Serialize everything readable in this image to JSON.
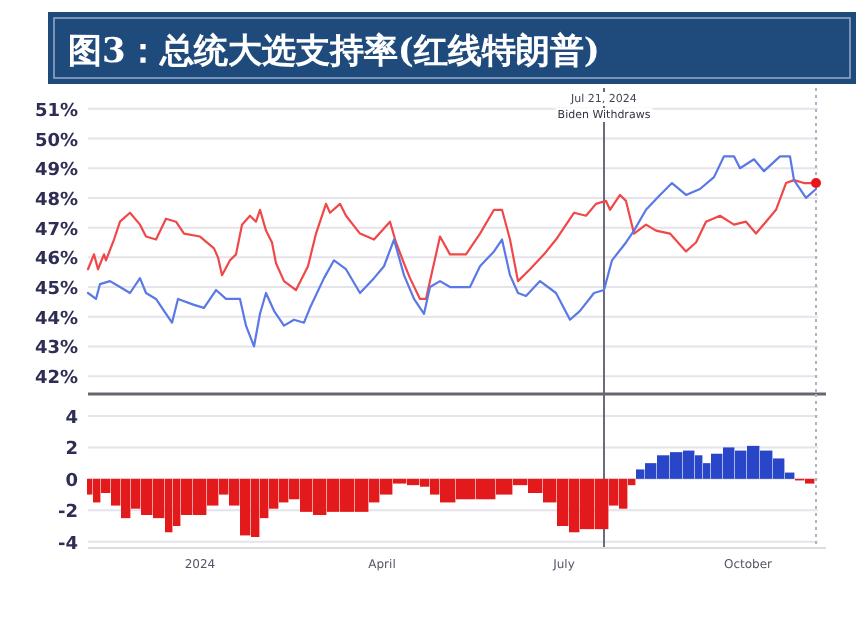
{
  "chart_data": [
    {
      "type": "line",
      "title": "图3：总统大选支持率(红线特朗普)",
      "xlim": [
        "2023-11-06",
        "2024-11-05"
      ],
      "ylim": [
        41.4,
        51.7
      ],
      "yticks": [
        {
          "value": 42,
          "label": "42%"
        },
        {
          "value": 43,
          "label": "43%"
        },
        {
          "value": 44,
          "label": "44%"
        },
        {
          "value": 45,
          "label": "45%"
        },
        {
          "value": 46,
          "label": "46%"
        },
        {
          "value": 47,
          "label": "47%"
        },
        {
          "value": 48,
          "label": "48%"
        },
        {
          "value": 49,
          "label": "49%"
        },
        {
          "value": 50,
          "label": "50%"
        },
        {
          "value": 51,
          "label": "51%"
        }
      ],
      "tick_labels": "y",
      "grid": "y",
      "line_style": "solid",
      "ref_lines": [
        {
          "axis": "x",
          "value": "2024-07-21",
          "label": "Jul 21, 2024",
          "color": "#6b6b80"
        },
        {
          "axis": "x",
          "value": "2024-11-04",
          "color": "#b0b0c8",
          "line_style": "dotted"
        }
      ],
      "annotations": [
        "Biden Withdraws"
      ],
      "series": [
        {
          "color": "#f04848",
          "x": [
            "2023-11-06",
            "2023-11-09",
            "2023-11-11",
            "2023-11-14",
            "2023-11-15",
            "2023-11-19",
            "2023-11-22",
            "2023-11-27",
            "2023-12-02",
            "2023-12-05",
            "2023-12-10",
            "2023-12-15",
            "2023-12-20",
            "2023-12-24",
            "2024-01-01",
            "2024-01-08",
            "2024-01-10",
            "2024-01-12",
            "2024-01-16",
            "2024-01-19",
            "2024-01-22",
            "2024-01-26",
            "2024-01-29",
            "2024-01-31",
            "2024-02-03",
            "2024-02-06",
            "2024-02-08",
            "2024-02-12",
            "2024-02-18",
            "2024-02-24",
            "2024-02-28",
            "2024-03-04",
            "2024-03-06",
            "2024-03-11",
            "2024-03-14",
            "2024-03-21",
            "2024-03-28",
            "2024-04-05",
            "2024-04-08",
            "2024-04-12",
            "2024-04-15",
            "2024-04-20",
            "2024-04-23",
            "2024-04-25",
            "2024-04-30",
            "2024-05-05",
            "2024-05-13",
            "2024-05-20",
            "2024-05-27",
            "2024-05-31",
            "2024-06-04",
            "2024-06-08",
            "2024-06-14",
            "2024-06-21",
            "2024-06-27",
            "2024-07-06",
            "2024-07-12",
            "2024-07-17",
            "2024-07-22",
            "2024-07-24",
            "2024-07-29",
            "2024-08-01",
            "2024-08-05",
            "2024-08-11",
            "2024-08-16",
            "2024-08-23",
            "2024-08-31",
            "2024-09-05",
            "2024-09-10",
            "2024-09-17",
            "2024-09-24",
            "2024-09-30",
            "2024-10-05",
            "2024-10-10",
            "2024-10-15",
            "2024-10-20",
            "2024-10-24",
            "2024-10-29",
            "2024-11-04"
          ],
          "values": [
            45.6,
            46.1,
            45.6,
            46.1,
            45.9,
            46.6,
            47.2,
            47.5,
            47.1,
            46.7,
            46.6,
            47.3,
            47.2,
            46.8,
            46.7,
            46.3,
            46.0,
            45.4,
            45.9,
            46.1,
            47.1,
            47.4,
            47.2,
            47.6,
            46.9,
            46.5,
            45.8,
            45.2,
            44.9,
            45.7,
            46.8,
            47.8,
            47.5,
            47.8,
            47.4,
            46.8,
            46.6,
            47.2,
            46.5,
            45.8,
            45.3,
            44.6,
            44.6,
            45.2,
            46.7,
            46.1,
            46.1,
            46.8,
            47.6,
            47.6,
            46.6,
            45.2,
            45.6,
            46.1,
            46.6,
            47.5,
            47.4,
            47.8,
            47.9,
            47.6,
            48.1,
            47.9,
            46.8,
            47.1,
            46.9,
            46.8,
            46.2,
            46.5,
            47.2,
            47.4,
            47.1,
            47.2,
            46.8,
            47.2,
            47.6,
            48.5,
            48.6,
            48.5,
            48.5
          ]
        },
        {
          "color": "#5a78e6",
          "x": [
            "2023-11-06",
            "2023-11-10",
            "2023-11-12",
            "2023-11-17",
            "2023-11-22",
            "2023-11-27",
            "2023-12-02",
            "2023-12-05",
            "2023-12-10",
            "2023-12-14",
            "2023-12-18",
            "2023-12-21",
            "2023-12-29",
            "2024-01-03",
            "2024-01-09",
            "2024-01-14",
            "2024-01-21",
            "2024-01-24",
            "2024-01-28",
            "2024-01-31",
            "2024-02-03",
            "2024-02-07",
            "2024-02-12",
            "2024-02-17",
            "2024-02-22",
            "2024-02-25",
            "2024-03-03",
            "2024-03-08",
            "2024-03-14",
            "2024-03-21",
            "2024-03-28",
            "2024-04-02",
            "2024-04-07",
            "2024-04-12",
            "2024-04-17",
            "2024-04-22",
            "2024-04-25",
            "2024-04-30",
            "2024-05-05",
            "2024-05-15",
            "2024-05-20",
            "2024-05-27",
            "2024-05-31",
            "2024-06-04",
            "2024-06-08",
            "2024-06-12",
            "2024-06-19",
            "2024-06-27",
            "2024-07-04",
            "2024-07-09",
            "2024-07-16",
            "2024-07-21",
            "2024-07-25",
            "2024-08-01",
            "2024-08-05",
            "2024-08-11",
            "2024-08-18",
            "2024-08-24",
            "2024-08-31",
            "2024-09-07",
            "2024-09-14",
            "2024-09-19",
            "2024-09-24",
            "2024-09-27",
            "2024-10-04",
            "2024-10-09",
            "2024-10-17",
            "2024-10-22",
            "2024-10-24",
            "2024-10-30",
            "2024-11-04"
          ],
          "values": [
            44.8,
            44.6,
            45.1,
            45.2,
            45.0,
            44.8,
            45.3,
            44.8,
            44.6,
            44.2,
            43.8,
            44.6,
            44.4,
            44.3,
            44.9,
            44.6,
            44.6,
            43.7,
            43.0,
            44.1,
            44.8,
            44.2,
            43.7,
            43.9,
            43.8,
            44.3,
            45.3,
            45.9,
            45.6,
            44.8,
            45.3,
            45.7,
            46.6,
            45.4,
            44.6,
            44.1,
            45.0,
            45.2,
            45.0,
            45.0,
            45.7,
            46.2,
            46.6,
            45.4,
            44.8,
            44.7,
            45.2,
            44.8,
            43.9,
            44.2,
            44.8,
            44.9,
            45.9,
            46.5,
            46.9,
            47.6,
            48.1,
            48.5,
            48.1,
            48.3,
            48.7,
            49.4,
            49.4,
            49.0,
            49.3,
            48.9,
            49.4,
            49.4,
            48.6,
            48.0,
            48.3
          ]
        },
        {
          "type": "scatter",
          "color": "#e8161b",
          "x": [
            "2024-11-04"
          ],
          "values": [
            48.5
          ]
        }
      ]
    },
    {
      "type": "bar",
      "xlim": [
        "2023-11-06",
        "2024-11-05"
      ],
      "ylim": [
        -4.4,
        5.4
      ],
      "yticks": [
        -4,
        -2,
        0,
        2,
        4
      ],
      "grid": "y",
      "xticks": [
        {
          "value": "2024-01-01",
          "label": "2024"
        },
        {
          "value": "2024-04-01",
          "label": "April"
        },
        {
          "value": "2024-07-01",
          "label": "July"
        },
        {
          "value": "2024-10-01",
          "label": "October"
        }
      ],
      "ref_lines": [
        {
          "axis": "x",
          "value": "2024-07-21",
          "color": "#6b6b80"
        },
        {
          "axis": "x",
          "value": "2024-11-04",
          "color": "#b0b0c8",
          "line_style": "dotted"
        }
      ],
      "x": [
        "2023-11-07",
        "2023-11-10",
        "2023-11-15",
        "2023-11-20",
        "2023-11-25",
        "2023-11-30",
        "2023-12-05",
        "2023-12-12",
        "2023-12-17",
        "2023-12-20",
        "2023-12-25",
        "2024-01-01",
        "2024-01-08",
        "2024-01-13",
        "2024-01-18",
        "2024-01-24",
        "2024-01-29",
        "2024-02-02",
        "2024-02-07",
        "2024-02-12",
        "2024-02-17",
        "2024-02-23",
        "2024-03-01",
        "2024-03-08",
        "2024-03-14",
        "2024-03-23",
        "2024-03-28",
        "2024-04-03",
        "2024-04-10",
        "2024-04-17",
        "2024-04-23",
        "2024-04-27",
        "2024-05-03",
        "2024-05-13",
        "2024-05-23",
        "2024-06-02",
        "2024-06-09",
        "2024-06-17",
        "2024-06-24",
        "2024-07-01",
        "2024-07-06",
        "2024-07-12",
        "2024-07-21",
        "2024-07-26",
        "2024-07-31",
        "2024-08-04",
        "2024-08-08",
        "2024-08-13",
        "2024-08-20",
        "2024-08-26",
        "2024-09-02",
        "2024-09-07",
        "2024-09-10",
        "2024-09-15",
        "2024-09-22",
        "2024-09-27",
        "2024-10-04",
        "2024-10-10",
        "2024-10-17",
        "2024-10-22",
        "2024-10-27",
        "2024-11-01"
      ],
      "values": [
        -1.0,
        -1.5,
        -0.9,
        -1.7,
        -2.5,
        -1.9,
        -2.3,
        -2.5,
        -3.4,
        -3.0,
        -2.3,
        -2.3,
        -1.7,
        -1.0,
        -1.7,
        -3.6,
        -3.7,
        -2.5,
        -1.9,
        -1.5,
        -1.3,
        -2.1,
        -2.3,
        -2.1,
        -2.1,
        -2.1,
        -1.5,
        -1.0,
        -0.3,
        -0.4,
        -0.5,
        -1.0,
        -1.5,
        -1.3,
        -1.3,
        -1.0,
        -0.4,
        -0.9,
        -1.5,
        -3.0,
        -3.4,
        -3.2,
        -3.2,
        -1.7,
        -1.9,
        -0.4,
        0.6,
        1.0,
        1.5,
        1.7,
        1.8,
        1.5,
        1.0,
        1.6,
        2.0,
        1.8,
        2.1,
        1.8,
        1.3,
        0.4,
        -0.1,
        -0.3
      ],
      "colors": [
        "#e31a1c",
        "#e31a1c",
        "#e31a1c",
        "#e31a1c",
        "#e31a1c",
        "#e31a1c",
        "#e31a1c",
        "#e31a1c",
        "#e31a1c",
        "#e31a1c",
        "#e31a1c",
        "#e31a1c",
        "#e31a1c",
        "#e31a1c",
        "#e31a1c",
        "#e31a1c",
        "#e31a1c",
        "#e31a1c",
        "#e31a1c",
        "#e31a1c",
        "#e31a1c",
        "#e31a1c",
        "#e31a1c",
        "#e31a1c",
        "#e31a1c",
        "#e31a1c",
        "#e31a1c",
        "#e31a1c",
        "#e31a1c",
        "#e31a1c",
        "#e31a1c",
        "#e31a1c",
        "#e31a1c",
        "#e31a1c",
        "#e31a1c",
        "#e31a1c",
        "#e31a1c",
        "#e31a1c",
        "#e31a1c",
        "#e31a1c",
        "#e31a1c",
        "#e31a1c",
        "#e31a1c",
        "#e31a1c",
        "#e31a1c",
        "#e31a1c",
        "#2a46c8",
        "#2a46c8",
        "#2a46c8",
        "#2a46c8",
        "#2a46c8",
        "#2a46c8",
        "#2a46c8",
        "#2a46c8",
        "#2a46c8",
        "#2a46c8",
        "#2a46c8",
        "#2a46c8",
        "#2a46c8",
        "#2a46c8",
        "#e31a1c",
        "#e31a1c"
      ]
    }
  ]
}
